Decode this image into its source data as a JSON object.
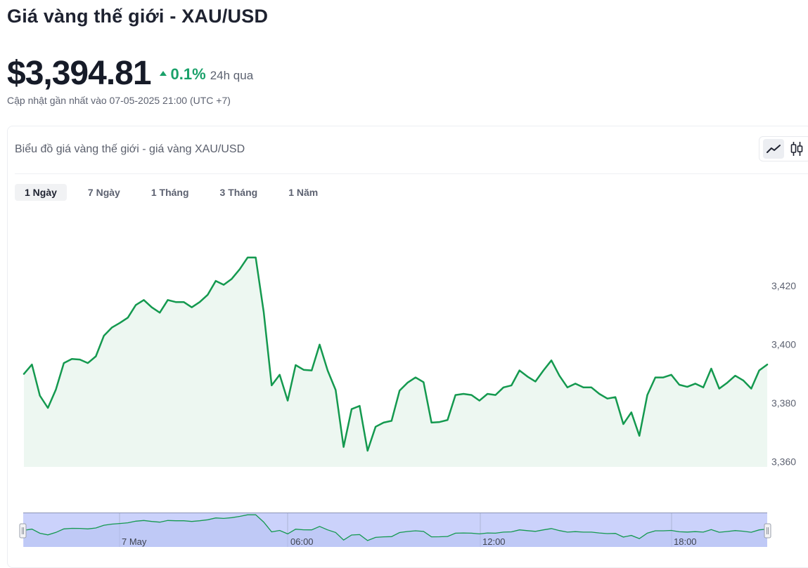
{
  "page": {
    "title": "Giá vàng thế giới - XAU/USD",
    "price": "$3,394.81",
    "change": "0.1%",
    "change_period": "24h qua",
    "updated": "Cập nhật gần nhất vào 07-05-2025 21:00 (UTC +7)"
  },
  "card": {
    "title": "Biểu đồ giá vàng thế giới - giá vàng XAU/USD",
    "chart_types": [
      {
        "name": "line-chart-icon",
        "active": true
      },
      {
        "name": "candlestick-icon",
        "active": false
      }
    ],
    "ranges": [
      {
        "label": "1 Ngày",
        "active": true
      },
      {
        "label": "7 Ngày",
        "active": false
      },
      {
        "label": "1 Tháng",
        "active": false
      },
      {
        "label": "3 Tháng",
        "active": false
      },
      {
        "label": "1 Năm",
        "active": false
      }
    ]
  },
  "colors": {
    "line": "#14994f",
    "area": "#edf7f1",
    "up": "#1aa16a",
    "navigator": "#cbd2fb",
    "navigator_border": "#a0a8c7"
  },
  "chart_data": {
    "type": "area",
    "y_ticks": [
      "3,420",
      "3,400",
      "3,380",
      "3,360"
    ],
    "y_tick_values": [
      3420,
      3400,
      3380,
      3360
    ],
    "ylim": [
      3358.2,
      3433.6
    ],
    "navigator_labels": [
      "7 May",
      "06:00",
      "12:00",
      "18:00"
    ],
    "grid": false,
    "values": [
      3389.9,
      3393.1,
      3382.5,
      3378.3,
      3384.6,
      3393.6,
      3395.0,
      3394.8,
      3393.6,
      3395.9,
      3402.9,
      3405.7,
      3407.3,
      3409.1,
      3413.4,
      3415.1,
      3412.6,
      3410.8,
      3415.1,
      3414.4,
      3414.4,
      3412.6,
      3414.4,
      3416.9,
      3421.6,
      3420.3,
      3422.3,
      3425.6,
      3429.6,
      3429.6,
      3411.0,
      3386.0,
      3389.6,
      3380.8,
      3392.9,
      3391.3,
      3391.1,
      3399.9,
      3391.1,
      3384.4,
      3365.0,
      3377.9,
      3379.0,
      3363.7,
      3371.9,
      3373.3,
      3373.9,
      3384.2,
      3386.9,
      3388.7,
      3387.1,
      3373.3,
      3373.5,
      3374.2,
      3382.7,
      3383.1,
      3382.7,
      3380.8,
      3383.1,
      3382.7,
      3385.3,
      3386.0,
      3391.1,
      3389.0,
      3387.3,
      3391.1,
      3394.5,
      3389.3,
      3385.3,
      3386.6,
      3385.3,
      3385.3,
      3383.1,
      3381.5,
      3382.0,
      3372.8,
      3376.8,
      3368.8,
      3382.7,
      3388.7,
      3388.7,
      3389.6,
      3386.2,
      3385.5,
      3386.6,
      3385.3,
      3391.7,
      3384.9,
      3386.9,
      3389.3,
      3387.7,
      3384.9,
      3391.1,
      3393.1
    ]
  }
}
